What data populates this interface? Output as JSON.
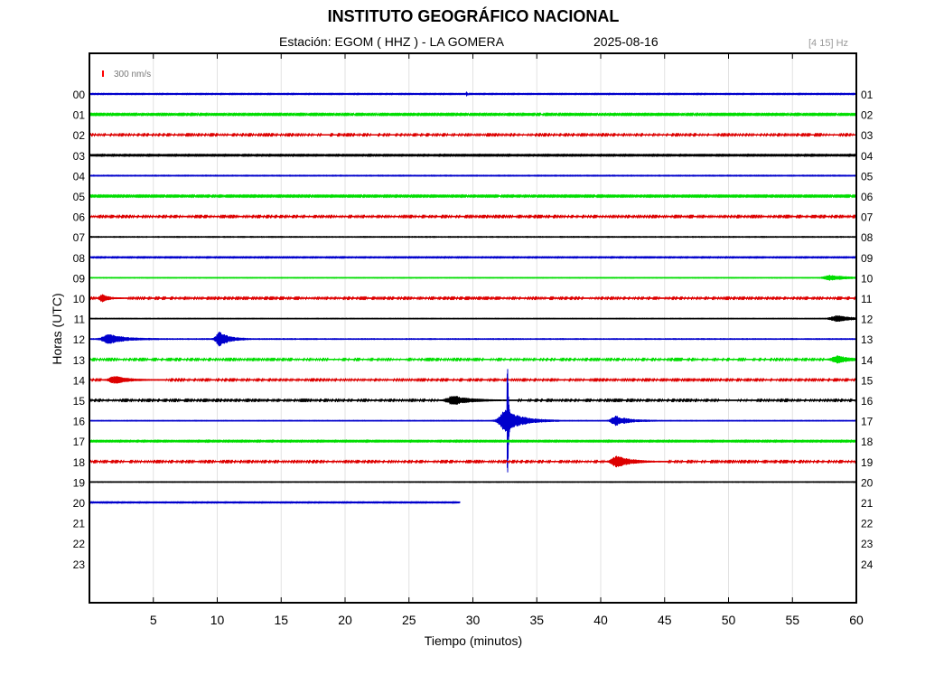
{
  "header": {
    "title": "INSTITUTO GEOGRÁFICO NACIONAL",
    "station": "Estación:  EGOM ( HHZ ) - LA GOMERA",
    "date": "2025-08-16",
    "band": "[4 15] Hz"
  },
  "chart_data": {
    "type": "line",
    "title": "INSTITUTO GEOGRÁFICO NACIONAL",
    "xlabel": "Tiempo (minutos)",
    "ylabel": "Horas (UTC)",
    "xlim": [
      0,
      60
    ],
    "x_ticks": [
      5,
      10,
      15,
      20,
      25,
      30,
      35,
      40,
      45,
      50,
      55,
      60
    ],
    "left_hour_labels": [
      "00",
      "01",
      "02",
      "03",
      "04",
      "05",
      "06",
      "07",
      "08",
      "09",
      "10",
      "11",
      "12",
      "13",
      "14",
      "15",
      "16",
      "17",
      "18",
      "19",
      "20",
      "21",
      "22",
      "23"
    ],
    "right_hour_labels": [
      "01",
      "02",
      "03",
      "04",
      "05",
      "06",
      "07",
      "08",
      "09",
      "10",
      "11",
      "12",
      "13",
      "14",
      "15",
      "16",
      "17",
      "18",
      "19",
      "20",
      "21",
      "22",
      "23",
      "24"
    ],
    "grid": true,
    "scale_bar": {
      "label": "300 nm/s",
      "color": "#ff0000"
    },
    "trace_colors": [
      "#0000cc",
      "#00dd00",
      "#dd0000",
      "#000000"
    ],
    "traces": [
      {
        "hour": 0,
        "noise": 0.3,
        "end": 60,
        "events": [
          {
            "t": 29.5,
            "amp": 3,
            "dur": 0.15
          }
        ]
      },
      {
        "hour": 1,
        "noise": 0.5,
        "end": 60,
        "events": []
      },
      {
        "hour": 2,
        "noise": 0.6,
        "end": 60,
        "events": []
      },
      {
        "hour": 3,
        "noise": 0.4,
        "end": 60,
        "events": []
      },
      {
        "hour": 4,
        "noise": 1.0,
        "end": 60,
        "events": []
      },
      {
        "hour": 5,
        "noise": 0.5,
        "end": 60,
        "events": []
      },
      {
        "hour": 6,
        "noise": 0.6,
        "end": 60,
        "events": []
      },
      {
        "hour": 7,
        "noise": 0.9,
        "end": 60,
        "events": []
      },
      {
        "hour": 8,
        "noise": 0.3,
        "end": 60,
        "events": []
      },
      {
        "hour": 9,
        "noise": 0.8,
        "end": 60,
        "events": [
          {
            "t": 58,
            "amp": 2.5,
            "dur": 2.5
          }
        ]
      },
      {
        "hour": 10,
        "noise": 0.6,
        "end": 60,
        "events": [
          {
            "t": 1.0,
            "amp": 4,
            "dur": 1.2
          }
        ]
      },
      {
        "hour": 11,
        "noise": 0.8,
        "end": 60,
        "events": [
          {
            "t": 58.5,
            "amp": 3,
            "dur": 2.5
          }
        ]
      },
      {
        "hour": 12,
        "noise": 0.9,
        "end": 60,
        "events": [
          {
            "t": 1.5,
            "amp": 5,
            "dur": 2.5
          },
          {
            "t": 10.2,
            "amp": 8,
            "dur": 1.5
          }
        ]
      },
      {
        "hour": 13,
        "noise": 0.6,
        "end": 60,
        "events": [
          {
            "t": 58.5,
            "amp": 4,
            "dur": 2.5
          }
        ]
      },
      {
        "hour": 14,
        "noise": 0.6,
        "end": 60,
        "events": [
          {
            "t": 2.0,
            "amp": 4,
            "dur": 2.5
          }
        ]
      },
      {
        "hour": 15,
        "noise": 0.6,
        "end": 60,
        "events": [
          {
            "t": 28.5,
            "amp": 5,
            "dur": 3
          }
        ]
      },
      {
        "hour": 16,
        "noise": 0.8,
        "end": 60,
        "events": [
          {
            "t": 32.7,
            "amp": 105,
            "dur": 0.12
          },
          {
            "t": 32.6,
            "amp": 12,
            "dur": 2.6
          },
          {
            "t": 41.2,
            "amp": 5,
            "dur": 2
          }
        ]
      },
      {
        "hour": 17,
        "noise": 0.4,
        "end": 60,
        "events": []
      },
      {
        "hour": 18,
        "noise": 0.6,
        "end": 60,
        "events": [
          {
            "t": 41.3,
            "amp": 6,
            "dur": 2.5
          }
        ]
      },
      {
        "hour": 19,
        "noise": 0.8,
        "end": 60,
        "events": []
      },
      {
        "hour": 20,
        "noise": 0.3,
        "end": 29,
        "events": []
      }
    ]
  }
}
